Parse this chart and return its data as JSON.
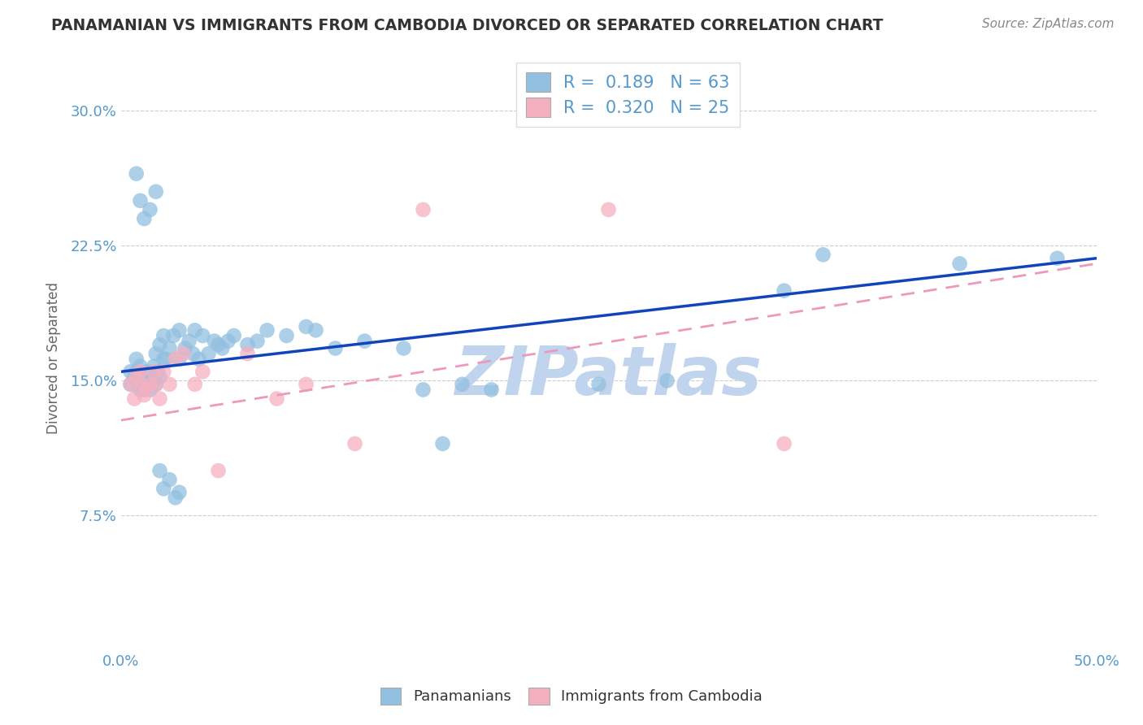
{
  "title": "PANAMANIAN VS IMMIGRANTS FROM CAMBODIA DIVORCED OR SEPARATED CORRELATION CHART",
  "source_text": "Source: ZipAtlas.com",
  "ylabel": "Divorced or Separated",
  "xlim": [
    0.0,
    0.5
  ],
  "ylim": [
    0.0,
    0.325
  ],
  "xticks": [
    0.0,
    0.1,
    0.2,
    0.3,
    0.4,
    0.5
  ],
  "xticklabels": [
    "0.0%",
    "",
    "",
    "",
    "",
    "50.0%"
  ],
  "yticks": [
    0.075,
    0.15,
    0.225,
    0.3
  ],
  "yticklabels": [
    "7.5%",
    "15.0%",
    "22.5%",
    "30.0%"
  ],
  "grid_color": "#cccccc",
  "watermark": "ZIPatlas",
  "watermark_color": "#c0d4ee",
  "r_blue": 0.189,
  "n_blue": 63,
  "r_pink": 0.32,
  "n_pink": 25,
  "blue_color": "#92c0e0",
  "pink_color": "#f5b0c0",
  "line_blue": "#1144bb",
  "line_pink": "#ee99bb",
  "axis_color": "#5599cc",
  "blue_line_start_y": 0.155,
  "blue_line_end_y": 0.218,
  "pink_line_start_y": 0.128,
  "pink_line_end_y": 0.215,
  "blue_points_x": [
    0.005,
    0.005,
    0.007,
    0.008,
    0.008,
    0.009,
    0.01,
    0.01,
    0.01,
    0.01,
    0.012,
    0.012,
    0.013,
    0.013,
    0.015,
    0.015,
    0.015,
    0.016,
    0.017,
    0.017,
    0.018,
    0.018,
    0.019,
    0.02,
    0.02,
    0.022,
    0.022,
    0.023,
    0.025,
    0.027,
    0.03,
    0.03,
    0.033,
    0.035,
    0.037,
    0.038,
    0.04,
    0.042,
    0.045,
    0.048,
    0.05,
    0.052,
    0.055,
    0.058,
    0.065,
    0.07,
    0.075,
    0.085,
    0.095,
    0.1,
    0.11,
    0.125,
    0.145,
    0.155,
    0.165,
    0.175,
    0.19,
    0.245,
    0.28,
    0.34,
    0.36,
    0.43,
    0.48
  ],
  "blue_points_y": [
    0.155,
    0.148,
    0.152,
    0.155,
    0.162,
    0.15,
    0.145,
    0.148,
    0.152,
    0.158,
    0.145,
    0.15,
    0.148,
    0.155,
    0.145,
    0.148,
    0.152,
    0.155,
    0.15,
    0.158,
    0.148,
    0.165,
    0.155,
    0.152,
    0.17,
    0.162,
    0.175,
    0.162,
    0.168,
    0.175,
    0.162,
    0.178,
    0.168,
    0.172,
    0.165,
    0.178,
    0.162,
    0.175,
    0.165,
    0.172,
    0.17,
    0.168,
    0.172,
    0.175,
    0.17,
    0.172,
    0.178,
    0.175,
    0.18,
    0.178,
    0.168,
    0.172,
    0.168,
    0.145,
    0.115,
    0.148,
    0.145,
    0.148,
    0.15,
    0.2,
    0.22,
    0.215,
    0.218
  ],
  "blue_outlier_x": [
    0.008,
    0.01,
    0.012,
    0.015,
    0.018,
    0.02,
    0.022,
    0.025,
    0.028,
    0.03
  ],
  "blue_outlier_y": [
    0.265,
    0.25,
    0.24,
    0.245,
    0.255,
    0.1,
    0.09,
    0.095,
    0.085,
    0.088
  ],
  "pink_points_x": [
    0.005,
    0.007,
    0.008,
    0.01,
    0.01,
    0.012,
    0.013,
    0.015,
    0.017,
    0.018,
    0.02,
    0.022,
    0.025,
    0.028,
    0.032,
    0.038,
    0.042,
    0.05,
    0.065,
    0.08,
    0.095,
    0.12,
    0.155,
    0.25,
    0.34
  ],
  "pink_points_y": [
    0.148,
    0.14,
    0.152,
    0.148,
    0.155,
    0.142,
    0.145,
    0.148,
    0.155,
    0.148,
    0.14,
    0.155,
    0.148,
    0.162,
    0.165,
    0.148,
    0.155,
    0.1,
    0.165,
    0.14,
    0.148,
    0.115,
    0.245,
    0.245,
    0.115
  ]
}
